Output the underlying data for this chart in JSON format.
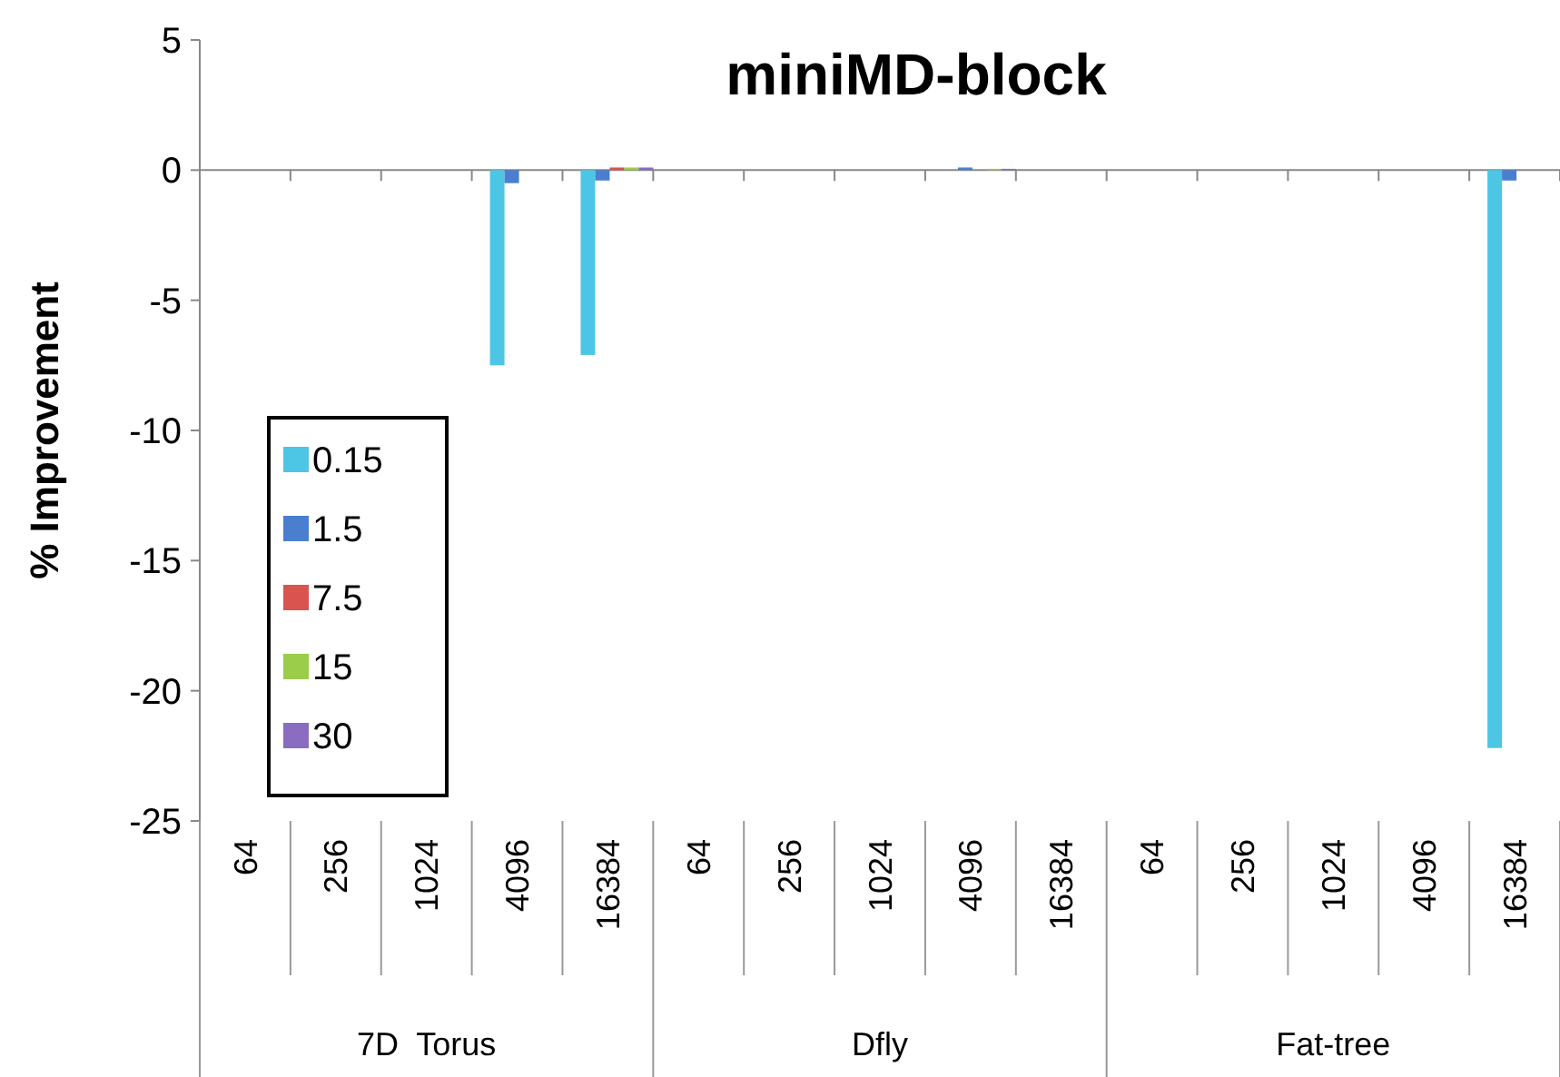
{
  "chart_data": {
    "type": "bar",
    "title": "miniMD-block",
    "ylabel": "% Improvement",
    "categories": [
      "64",
      "256",
      "1024",
      "4096",
      "16384",
      "64",
      "256",
      "1024",
      "4096",
      "16384",
      "64",
      "256",
      "1024",
      "4096",
      "16384"
    ],
    "annotations": [
      "7D  Torus",
      "Dfly",
      "Fat-tree"
    ],
    "series": [
      {
        "name": "0.15",
        "color": "#4cc6e4",
        "values": [
          0,
          0,
          0,
          -7.5,
          -7.1,
          0,
          0,
          0,
          0,
          0,
          0,
          0,
          0,
          0,
          -22.2
        ]
      },
      {
        "name": "1.5",
        "color": "#4a7fd0",
        "values": [
          0,
          0,
          0,
          -0.5,
          -0.4,
          0,
          0,
          0,
          0.1,
          0,
          0,
          0,
          0,
          0,
          -0.4
        ]
      },
      {
        "name": "7.5",
        "color": "#d9534f",
        "values": [
          0,
          0,
          0,
          0,
          0.1,
          0,
          0,
          0,
          0,
          0,
          0,
          0,
          0,
          0,
          0
        ]
      },
      {
        "name": "15",
        "color": "#9bcc4a",
        "values": [
          0,
          0,
          0,
          0,
          0.1,
          0,
          0,
          0,
          0.05,
          0,
          0,
          0,
          0,
          0,
          0
        ]
      },
      {
        "name": "30",
        "color": "#8a6cc0",
        "values": [
          0,
          0,
          0,
          0,
          0.1,
          0,
          0,
          0,
          0.05,
          0,
          0,
          0,
          0,
          0,
          0
        ]
      }
    ],
    "ylim": [
      -25,
      5
    ],
    "yticks": [
      -25,
      -20,
      -15,
      -10,
      -5,
      0,
      5
    ],
    "legend": "left"
  }
}
